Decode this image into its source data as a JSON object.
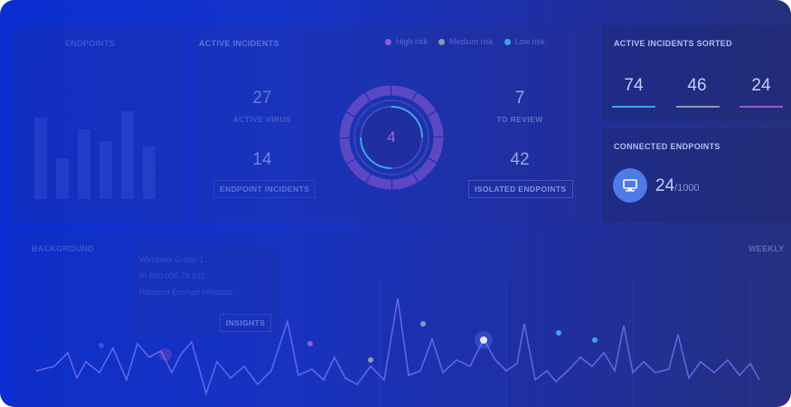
{
  "panels": {
    "endpoints_title": "Endpoints",
    "active_incidents_title": "Active Incidents",
    "sorted_title": "Active incidents sorted",
    "connected_title": "Connected endpoints",
    "weekly_label": "WEEKLY",
    "background_title": "Background"
  },
  "legend": [
    {
      "label": "High risk",
      "color": "#8d5fd6"
    },
    {
      "label": "Medium risk",
      "color": "#8f93b3"
    },
    {
      "label": "Low risk",
      "color": "#3fa6e6"
    }
  ],
  "incidents": {
    "active_virus_value": "27",
    "active_virus_label": "Active virus",
    "endpoint_incidents_value": "14",
    "endpoint_incidents_label": "Endpoint incidents",
    "to_review_value": "7",
    "to_review_label": "To review",
    "isolated_value": "42",
    "isolated_label": "Isolated endpoints",
    "ring_center": "4"
  },
  "sorted": [
    {
      "value": "74",
      "color": "#3fa6e6"
    },
    {
      "value": "46",
      "color": "#9296b8"
    },
    {
      "value": "24",
      "color": "#8d5fd6"
    }
  ],
  "connected": {
    "count": "24",
    "total": "/1000",
    "icon": "monitor-icon"
  },
  "insights": {
    "line1": "Windows Group 1",
    "line2": "IP 860.000.78.011",
    "line3": "Ransom Encrypt Infection",
    "button": "INSIGHTS"
  }
}
